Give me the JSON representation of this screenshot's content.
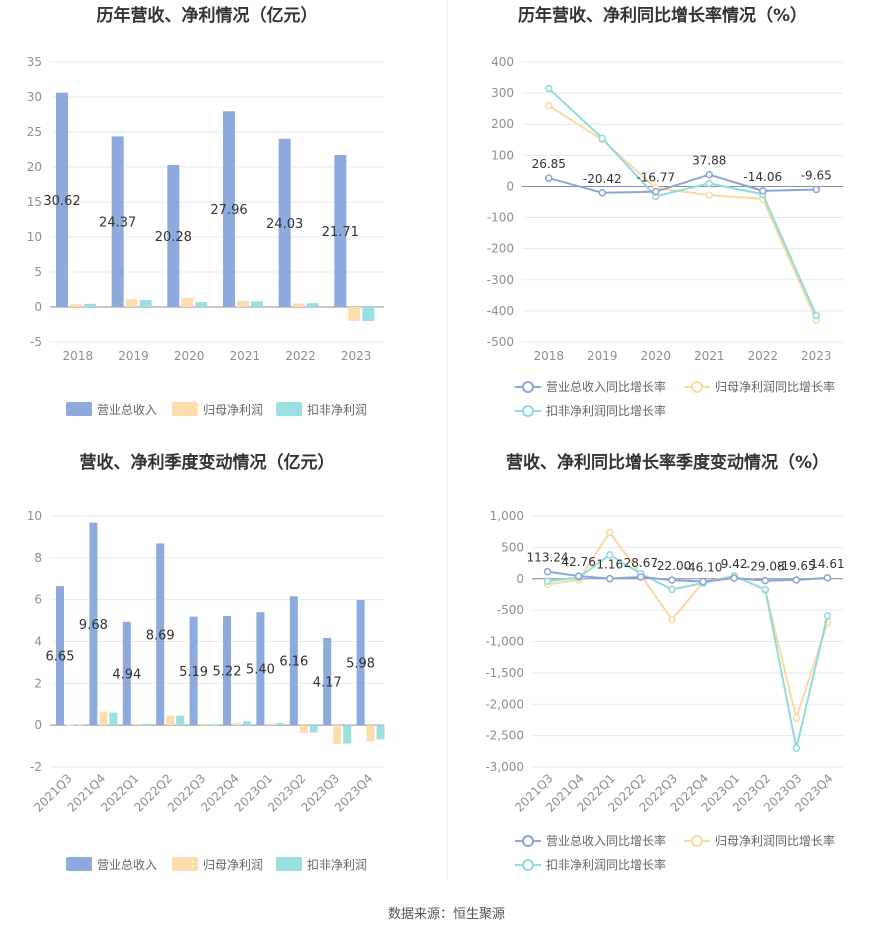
{
  "colors": {
    "revenue": "#8eaadc",
    "net_profit": "#fddcae",
    "deducted_profit": "#9be0e0",
    "axis_text": "#8a8f99",
    "grid": "#e6e9f0",
    "title": "#333333"
  },
  "source_text": "数据来源：恒生聚源",
  "chart_data": [
    {
      "type": "bar",
      "title": "历年营收、净利情况（亿元）",
      "categories": [
        "2018",
        "2019",
        "2020",
        "2021",
        "2022",
        "2023"
      ],
      "ylim": [
        -5,
        35
      ],
      "yticks": [
        -5,
        0,
        5,
        10,
        15,
        20,
        25,
        30,
        35
      ],
      "series": [
        {
          "name": "营业总收入",
          "values": [
            30.62,
            24.37,
            20.28,
            27.96,
            24.03,
            21.71
          ],
          "labels": [
            "30.62",
            "24.37",
            "20.28",
            "27.96",
            "24.03",
            "21.71"
          ]
        },
        {
          "name": "归母净利润",
          "values": [
            0.4,
            1.1,
            1.3,
            0.9,
            0.5,
            -2.0
          ]
        },
        {
          "name": "扣非净利润",
          "values": [
            0.45,
            1.0,
            0.7,
            0.8,
            0.55,
            -2.0
          ]
        }
      ],
      "legend": "bottom",
      "grid": true
    },
    {
      "type": "line",
      "title": "历年营收、净利同比增长率情况（%）",
      "categories": [
        "2018",
        "2019",
        "2020",
        "2021",
        "2022",
        "2023"
      ],
      "ylim": [
        -500,
        400
      ],
      "yticks": [
        -500,
        -400,
        -300,
        -200,
        -100,
        0,
        100,
        200,
        300,
        400
      ],
      "series": [
        {
          "name": "营业总收入同比增长率",
          "values": [
            26.85,
            -20.42,
            -16.77,
            37.88,
            -14.06,
            -9.65
          ],
          "labels": [
            "26.85",
            "-20.42",
            "-16.77",
            "37.88",
            "-14.06",
            "-9.65"
          ]
        },
        {
          "name": "归母净利润同比增长率",
          "values": [
            260,
            150,
            -5,
            -28,
            -40,
            -430
          ]
        },
        {
          "name": "扣非净利润同比增长率",
          "values": [
            315,
            155,
            -32,
            10,
            -25,
            -415
          ]
        }
      ],
      "legend": "bottom",
      "grid": true
    },
    {
      "type": "bar",
      "title": "营收、净利季度变动情况（亿元）",
      "categories": [
        "2021Q3",
        "2021Q4",
        "2022Q1",
        "2022Q2",
        "2022Q3",
        "2022Q4",
        "2023Q1",
        "2023Q2",
        "2023Q3",
        "2023Q4"
      ],
      "ylim": [
        -2,
        10
      ],
      "yticks": [
        -2,
        0,
        2,
        4,
        6,
        8,
        10
      ],
      "series": [
        {
          "name": "营业总收入",
          "values": [
            6.65,
            9.68,
            4.94,
            8.69,
            5.19,
            5.22,
            5.4,
            6.16,
            4.17,
            5.98
          ],
          "labels": [
            "6.65",
            "9.68",
            "4.94",
            "8.69",
            "5.19",
            "5.22",
            "5.40",
            "6.16",
            "4.17",
            "5.98"
          ]
        },
        {
          "name": "归母净利润",
          "values": [
            0.03,
            0.65,
            0.05,
            0.45,
            -0.03,
            0.12,
            0.08,
            -0.38,
            -0.9,
            -0.78
          ]
        },
        {
          "name": "扣非净利润",
          "values": [
            0.02,
            0.6,
            0.07,
            0.45,
            0.02,
            0.18,
            0.1,
            -0.35,
            -0.88,
            -0.68
          ]
        }
      ],
      "legend": "bottom",
      "grid": true
    },
    {
      "type": "line",
      "title": "营收、净利同比增长率季度变动情况（%）",
      "categories": [
        "2021Q3",
        "2021Q4",
        "2022Q1",
        "2022Q2",
        "2022Q3",
        "2022Q4",
        "2023Q1",
        "2023Q2",
        "2023Q3",
        "2023Q4"
      ],
      "ylim": [
        -3000,
        1000
      ],
      "yticks": [
        -3000,
        -2500,
        -2000,
        -1500,
        -1000,
        -500,
        0,
        500,
        1000
      ],
      "ytick_labels": [
        "-3,000",
        "-2,500",
        "-2,000",
        "-1,500",
        "-1,000",
        "-500",
        "0",
        "500",
        "1,000"
      ],
      "series": [
        {
          "name": "营业总收入同比增长率",
          "values": [
            113.24,
            42.76,
            1.16,
            28.67,
            -22.0,
            -46.1,
            9.42,
            -29.08,
            -19.65,
            14.61
          ],
          "labels": [
            "113.24",
            "42.76",
            "1.16",
            "28.67",
            "-22.00",
            "-46.10",
            "9.42",
            "-29.08",
            "-19.65",
            "14.61"
          ]
        },
        {
          "name": "归母净利润同比增长率",
          "values": [
            -90,
            -20,
            740,
            60,
            -650,
            -60,
            50,
            -180,
            -2220,
            -700
          ]
        },
        {
          "name": "扣非净利润同比增长率",
          "values": [
            -40,
            20,
            380,
            80,
            -170,
            -70,
            40,
            -170,
            -2700,
            -590
          ]
        }
      ],
      "legend": "bottom",
      "grid": true
    }
  ]
}
